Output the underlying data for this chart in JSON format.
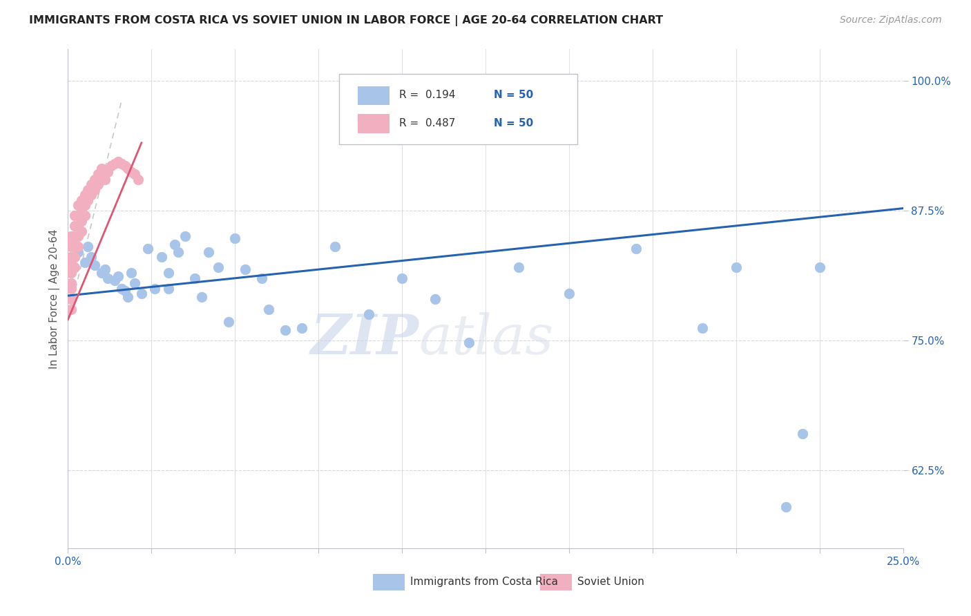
{
  "title": "IMMIGRANTS FROM COSTA RICA VS SOVIET UNION IN LABOR FORCE | AGE 20-64 CORRELATION CHART",
  "source": "Source: ZipAtlas.com",
  "ylabel_label": "In Labor Force | Age 20-64",
  "legend_label1": "Immigrants from Costa Rica",
  "legend_label2": "Soviet Union",
  "costa_rica_color": "#a8c4e8",
  "soviet_color": "#f2afc0",
  "trend_blue": "#2563b0",
  "trend_pink_solid": "#e05575",
  "trend_gray_dashed": "#c8c8c8",
  "background": "#ffffff",
  "grid_color": "#d8d8e0",
  "axis_color": "#c0c0c8",
  "tick_color": "#2563b0",
  "xlim": [
    0.0,
    0.25
  ],
  "ylim": [
    0.55,
    1.03
  ],
  "xticks": [
    0.0,
    0.025,
    0.05,
    0.075,
    0.1,
    0.125,
    0.15,
    0.175,
    0.2,
    0.225,
    0.25
  ],
  "yticks": [
    0.625,
    0.75,
    0.875,
    1.0
  ],
  "costa_rica_x": [
    0.001,
    0.002,
    0.003,
    0.005,
    0.006,
    0.007,
    0.008,
    0.01,
    0.011,
    0.012,
    0.014,
    0.015,
    0.016,
    0.017,
    0.018,
    0.019,
    0.02,
    0.022,
    0.024,
    0.026,
    0.028,
    0.03,
    0.03,
    0.032,
    0.033,
    0.035,
    0.038,
    0.04,
    0.042,
    0.045,
    0.048,
    0.05,
    0.053,
    0.058,
    0.06,
    0.065,
    0.07,
    0.08,
    0.09,
    0.1,
    0.11,
    0.12,
    0.135,
    0.15,
    0.17,
    0.19,
    0.2,
    0.215,
    0.22,
    0.225
  ],
  "costa_rica_y": [
    0.82,
    0.83,
    0.835,
    0.825,
    0.84,
    0.83,
    0.822,
    0.815,
    0.818,
    0.81,
    0.808,
    0.812,
    0.8,
    0.798,
    0.792,
    0.815,
    0.805,
    0.795,
    0.838,
    0.8,
    0.83,
    0.815,
    0.8,
    0.842,
    0.835,
    0.85,
    0.81,
    0.792,
    0.835,
    0.82,
    0.768,
    0.848,
    0.818,
    0.81,
    0.78,
    0.76,
    0.762,
    0.84,
    0.775,
    0.81,
    0.79,
    0.748,
    0.82,
    0.795,
    0.838,
    0.762,
    0.82,
    0.59,
    0.66,
    0.82
  ],
  "soviet_x": [
    0.001,
    0.001,
    0.001,
    0.001,
    0.001,
    0.001,
    0.001,
    0.001,
    0.001,
    0.001,
    0.001,
    0.002,
    0.002,
    0.002,
    0.002,
    0.002,
    0.002,
    0.003,
    0.003,
    0.003,
    0.003,
    0.003,
    0.004,
    0.004,
    0.004,
    0.004,
    0.005,
    0.005,
    0.005,
    0.006,
    0.006,
    0.007,
    0.007,
    0.008,
    0.008,
    0.009,
    0.009,
    0.01,
    0.01,
    0.011,
    0.012,
    0.013,
    0.014,
    0.015,
    0.016,
    0.017,
    0.018,
    0.019,
    0.02,
    0.021
  ],
  "soviet_y": [
    0.78,
    0.79,
    0.8,
    0.805,
    0.815,
    0.82,
    0.825,
    0.83,
    0.84,
    0.845,
    0.85,
    0.82,
    0.83,
    0.84,
    0.85,
    0.86,
    0.87,
    0.84,
    0.85,
    0.86,
    0.87,
    0.88,
    0.855,
    0.865,
    0.875,
    0.885,
    0.87,
    0.88,
    0.89,
    0.885,
    0.895,
    0.89,
    0.9,
    0.895,
    0.905,
    0.9,
    0.91,
    0.905,
    0.915,
    0.905,
    0.912,
    0.918,
    0.92,
    0.922,
    0.92,
    0.918,
    0.915,
    0.912,
    0.91,
    0.905
  ],
  "watermark_zip": "ZIP",
  "watermark_atlas": "atlas",
  "cr_trend_x": [
    0.0,
    0.25
  ],
  "cr_trend_y": [
    0.793,
    0.877
  ],
  "sv_trend_x": [
    0.0,
    0.022
  ],
  "sv_trend_y": [
    0.77,
    0.94
  ]
}
